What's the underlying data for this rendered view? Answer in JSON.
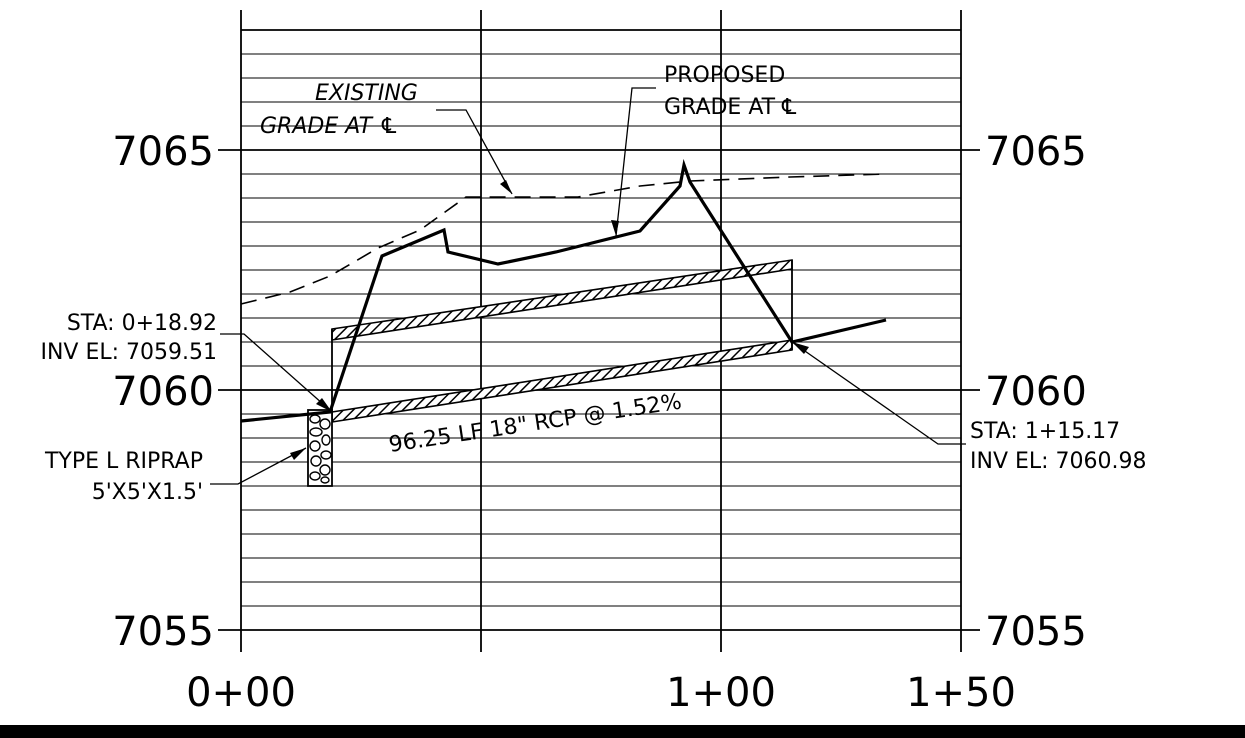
{
  "elevation_labels_left": [
    "7065",
    "7060",
    "7055"
  ],
  "elevation_labels_right": [
    "7065",
    "7060",
    "7055"
  ],
  "station_labels": [
    "0+00",
    "1+00",
    "1+50"
  ],
  "existing_grade_label": [
    "EXISTING",
    "GRADE AT ℄"
  ],
  "proposed_grade_label": [
    "PROPOSED",
    "GRADE AT ℄"
  ],
  "inlet_label": [
    "STA: 0+18.92",
    "INV EL: 7059.51"
  ],
  "outlet_label": [
    "STA: 1+15.17",
    "INV EL: 7060.98"
  ],
  "riprap_label": [
    "TYPE L RIPRAP",
    "5'X5'X1.5'"
  ],
  "pipe_label": "96.25 LF 18\" RCP @ 1.52%"
}
